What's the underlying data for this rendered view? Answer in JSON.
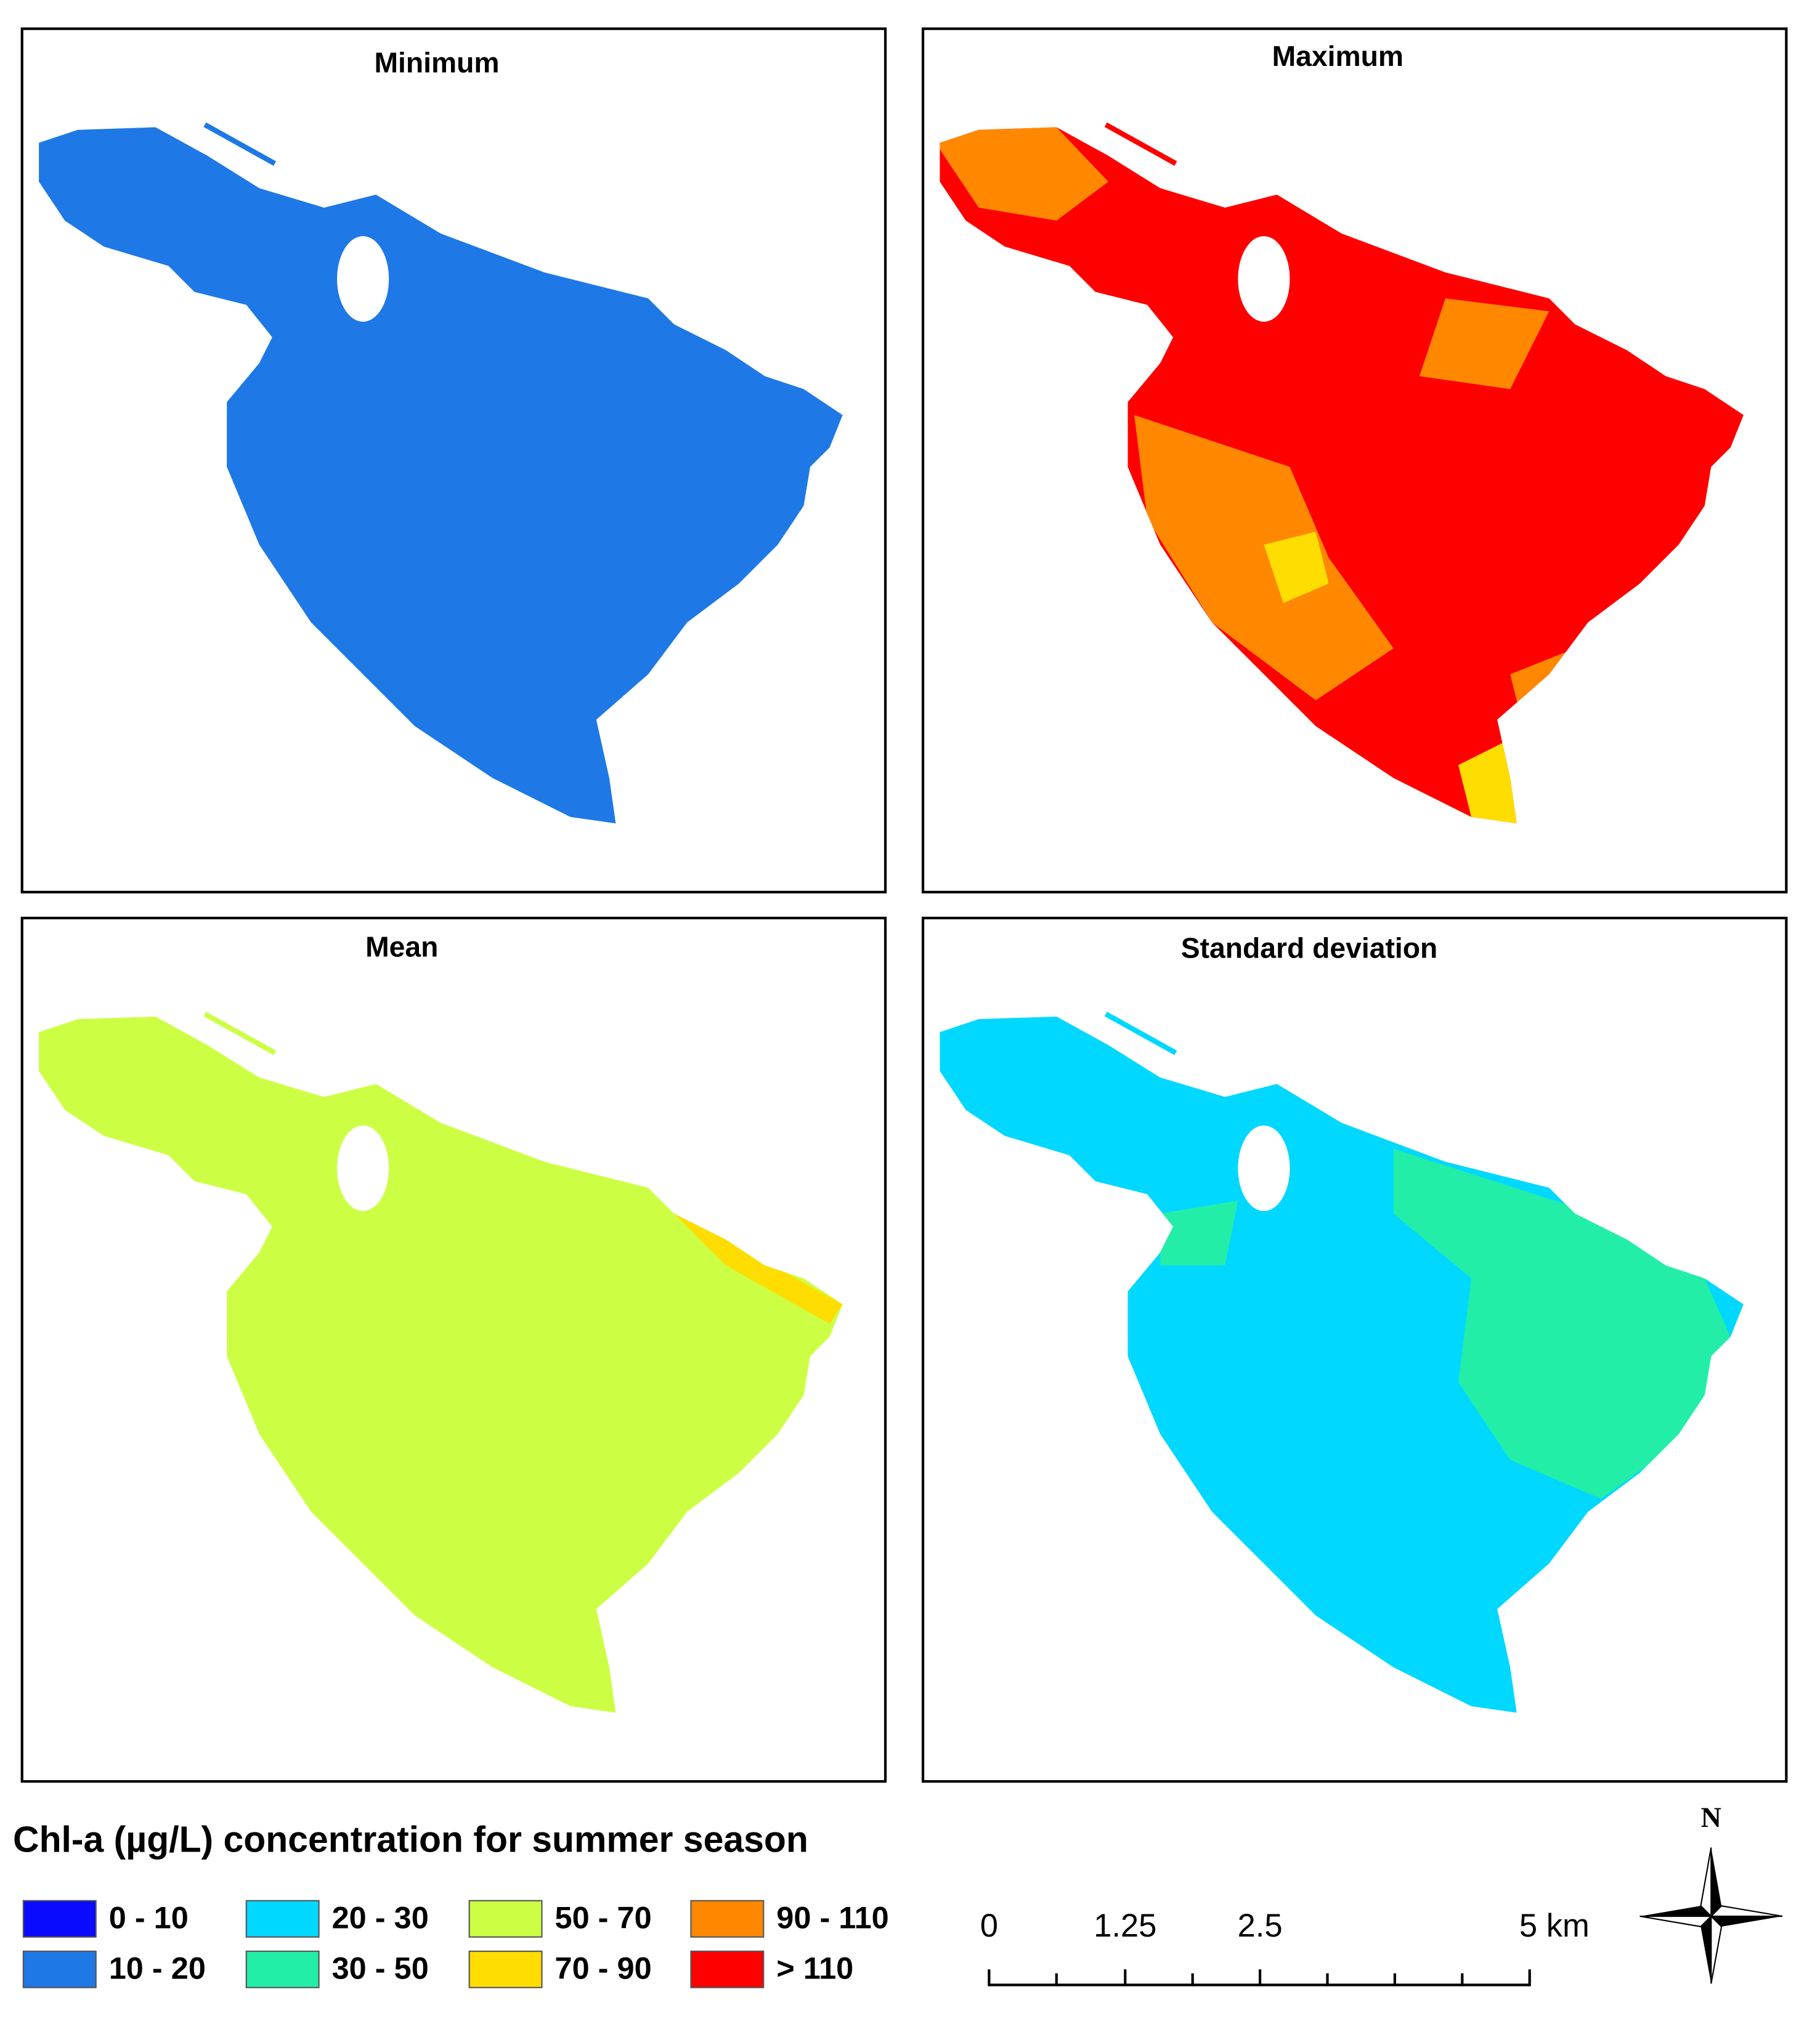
{
  "panels": [
    {
      "title": "Minimum"
    },
    {
      "title": "Maximum"
    },
    {
      "title": "Mean"
    },
    {
      "title": "Standard deviation"
    }
  ],
  "legend": {
    "title": "Chl-a (µg/L) concentration for summer season",
    "items": [
      {
        "label": "0 - 10",
        "color": "#0a0aff"
      },
      {
        "label": "10 - 20",
        "color": "#1e78e6"
      },
      {
        "label": "20 - 30",
        "color": "#00d8ff"
      },
      {
        "label": "30 - 50",
        "color": "#22eea8"
      },
      {
        "label": "50 - 70",
        "color": "#ccff44"
      },
      {
        "label": "70 - 90",
        "color": "#ffdd00"
      },
      {
        "label": "90 - 110",
        "color": "#ff8800"
      },
      {
        "label": "> 110",
        "color": "#ff0000"
      }
    ]
  },
  "scale_bar": {
    "labels": [
      "0",
      "1.25",
      "2.5",
      "5 km"
    ]
  },
  "north_arrow": {
    "label": "N"
  }
}
